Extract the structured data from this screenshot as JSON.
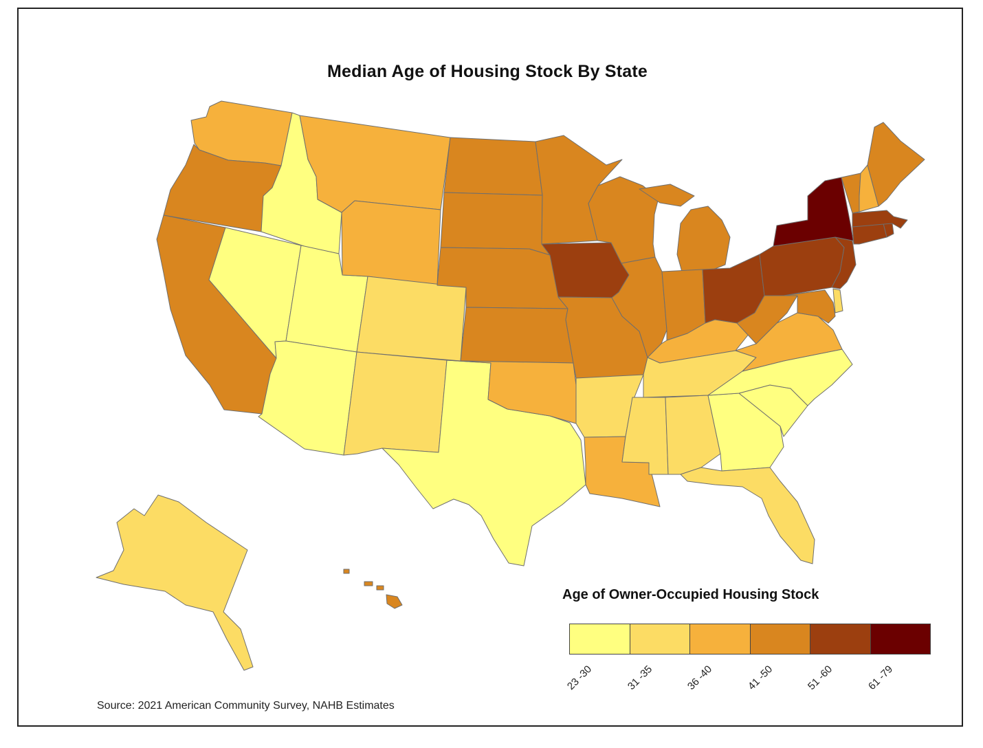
{
  "title": "Median Age of Housing Stock By State",
  "source": "Source: 2021 American Community Survey, NAHB Estimates",
  "legend": {
    "title": "Age of Owner-Occupied Housing Stock",
    "classes": [
      {
        "label": "23 -30",
        "color": "#ffff80"
      },
      {
        "label": "31 -35",
        "color": "#fcdc64"
      },
      {
        "label": "36 -40",
        "color": "#f6b13c"
      },
      {
        "label": "41 -50",
        "color": "#d9861f"
      },
      {
        "label": "51 -60",
        "color": "#9c3f0f"
      },
      {
        "label": "61 -79",
        "color": "#6b0000"
      }
    ]
  },
  "states": {
    "WA": 3,
    "OR": 4,
    "CA": 4,
    "ID": 1,
    "NV": 1,
    "UT": 1,
    "AZ": 1,
    "MT": 3,
    "WY": 3,
    "CO": 2,
    "NM": 2,
    "TX": 1,
    "ND": 4,
    "SD": 4,
    "NE": 4,
    "KS": 4,
    "OK": 3,
    "MN": 4,
    "IA": 5,
    "MO": 4,
    "AR": 2,
    "LA": 3,
    "WI": 4,
    "IL": 4,
    "MI": 4,
    "IN": 4,
    "OH": 5,
    "KY": 3,
    "TN": 2,
    "MS": 2,
    "AL": 2,
    "GA": 1,
    "FL": 2,
    "SC": 1,
    "NC": 1,
    "VA": 3,
    "WV": 4,
    "MD": 4,
    "DE": 2,
    "PA": 5,
    "NJ": 5,
    "NY": 6,
    "CT": 5,
    "RI": 5,
    "MA": 5,
    "VT": 4,
    "NH": 3,
    "ME": 4,
    "AK": 2,
    "HI": 4
  }
}
